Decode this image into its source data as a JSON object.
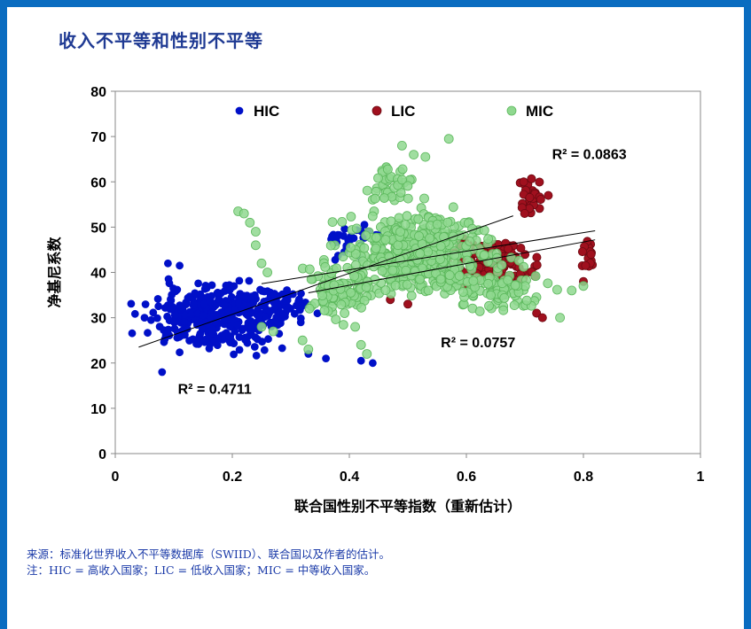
{
  "page": {
    "title": "收入不平等和性别不平等",
    "source_note": "来源：标准化世界收入不平等数据库（SWIID）、联合国以及作者的估计。",
    "abbrev_note": "注：HIC = 高收入国家；LIC = 低收入国家；MIC = 中等收入国家。"
  },
  "colors": {
    "frame": "#0a6cc0",
    "title": "#1f3a93",
    "notes": "#1a3aa8",
    "HIC": "#0010c8",
    "LIC": "#a0101e",
    "MIC": "#8fd88f",
    "MIC_edge": "#5cb85c"
  },
  "chart_data": {
    "type": "scatter",
    "xlabel": "联合国性别不平等指数（重新估计）",
    "ylabel": "净基尼系数",
    "xlim": [
      0,
      1
    ],
    "ylim": [
      0,
      80
    ],
    "x_ticks": [
      "0",
      "0.2",
      "0.4",
      "0.6",
      "0.8",
      "1"
    ],
    "y_ticks": [
      "0",
      "10",
      "20",
      "30",
      "40",
      "50",
      "60",
      "70",
      "80"
    ],
    "legend": [
      "HIC",
      "LIC",
      "MIC"
    ],
    "legend_position": "top-center",
    "grid": false,
    "series": [
      {
        "name": "HIC",
        "marker": "filled-circle",
        "clusters": [
          {
            "x_center": 0.17,
            "y_center": 30,
            "x_spread": 0.09,
            "y_spread": 5.5,
            "count": 320
          },
          {
            "x_center": 0.27,
            "y_center": 32,
            "x_spread": 0.05,
            "y_spread": 3.5,
            "count": 90
          },
          {
            "x_center": 0.4,
            "y_center": 47,
            "x_spread": 0.04,
            "y_spread": 3,
            "count": 30
          }
        ],
        "points": [
          [
            0.09,
            42
          ],
          [
            0.11,
            41.5
          ],
          [
            0.05,
            30
          ],
          [
            0.08,
            18
          ],
          [
            0.36,
            21
          ],
          [
            0.42,
            20.5
          ],
          [
            0.44,
            20
          ],
          [
            0.33,
            22
          ]
        ],
        "trendline": {
          "x": [
            0.04,
            0.68
          ],
          "y": [
            23.5,
            52.5
          ],
          "r2_label": "R² = 0.4711"
        }
      },
      {
        "name": "LIC",
        "marker": "filled-circle",
        "clusters": [
          {
            "x_center": 0.64,
            "y_center": 42,
            "x_spread": 0.06,
            "y_spread": 5,
            "count": 150
          },
          {
            "x_center": 0.71,
            "y_center": 56,
            "x_spread": 0.015,
            "y_spread": 4,
            "count": 30
          },
          {
            "x_center": 0.81,
            "y_center": 44,
            "x_spread": 0.015,
            "y_spread": 3,
            "count": 18
          }
        ],
        "points": [
          [
            0.47,
            34
          ],
          [
            0.5,
            33
          ],
          [
            0.72,
            31
          ],
          [
            0.73,
            30
          ],
          [
            0.74,
            57
          ],
          [
            0.8,
            38
          ]
        ],
        "trendline": {
          "x": [
            0.25,
            0.82
          ],
          "y": [
            37.5,
            49.2
          ],
          "r2_label": "R² = 0.0863"
        }
      },
      {
        "name": "MIC",
        "marker": "filled-circle",
        "clusters": [
          {
            "x_center": 0.52,
            "y_center": 44,
            "x_spread": 0.1,
            "y_spread": 7,
            "count": 520
          },
          {
            "x_center": 0.38,
            "y_center": 36,
            "x_spread": 0.05,
            "y_spread": 5,
            "count": 90
          },
          {
            "x_center": 0.47,
            "y_center": 60,
            "x_spread": 0.03,
            "y_spread": 3.5,
            "count": 40
          },
          {
            "x_center": 0.66,
            "y_center": 36,
            "x_spread": 0.06,
            "y_spread": 4,
            "count": 80
          }
        ],
        "points": [
          [
            0.21,
            53.5
          ],
          [
            0.22,
            53
          ],
          [
            0.23,
            51
          ],
          [
            0.24,
            49
          ],
          [
            0.24,
            46
          ],
          [
            0.25,
            42
          ],
          [
            0.26,
            40
          ],
          [
            0.57,
            69.5
          ],
          [
            0.49,
            68
          ],
          [
            0.51,
            66
          ],
          [
            0.53,
            65.5
          ],
          [
            0.33,
            23
          ],
          [
            0.32,
            25
          ],
          [
            0.25,
            28
          ],
          [
            0.27,
            27
          ],
          [
            0.41,
            28
          ],
          [
            0.42,
            24
          ],
          [
            0.43,
            22
          ],
          [
            0.76,
            30
          ],
          [
            0.78,
            36
          ],
          [
            0.8,
            37
          ]
        ],
        "trendline": {
          "x": [
            0.33,
            0.82
          ],
          "y": [
            35.5,
            47.2
          ],
          "r2_label": "R² = 0.0757"
        }
      }
    ]
  }
}
